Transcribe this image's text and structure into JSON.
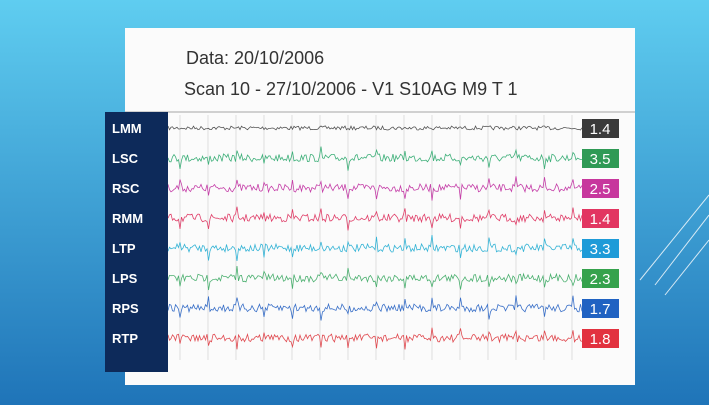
{
  "header": {
    "date_line": "Data: 20/10/2006",
    "scan_line": "Scan 10 - 27/10/2006 - V1 S10AG M9  T 1"
  },
  "channels": [
    {
      "label": "LMM",
      "value": 1.4,
      "color": "#3a3a3a",
      "trace_color": "#555555"
    },
    {
      "label": "LSC",
      "value": 3.5,
      "color": "#2f9a55",
      "trace_color": "#3fb07a"
    },
    {
      "label": "RSC",
      "value": 2.5,
      "color": "#c7379d",
      "trace_color": "#c53fa8"
    },
    {
      "label": "RMM",
      "value": 1.4,
      "color": "#e23561",
      "trace_color": "#e0406a"
    },
    {
      "label": "LTP",
      "value": 3.3,
      "color": "#1e9bd8",
      "trace_color": "#36b4d6"
    },
    {
      "label": "LPS",
      "value": 2.3,
      "color": "#35a24c",
      "trace_color": "#4cb070"
    },
    {
      "label": "RPS",
      "value": 1.7,
      "color": "#2062c2",
      "trace_color": "#3a70c8"
    },
    {
      "label": "RTP",
      "value": 1.8,
      "color": "#e2323f",
      "trace_color": "#e04a50"
    }
  ]
}
